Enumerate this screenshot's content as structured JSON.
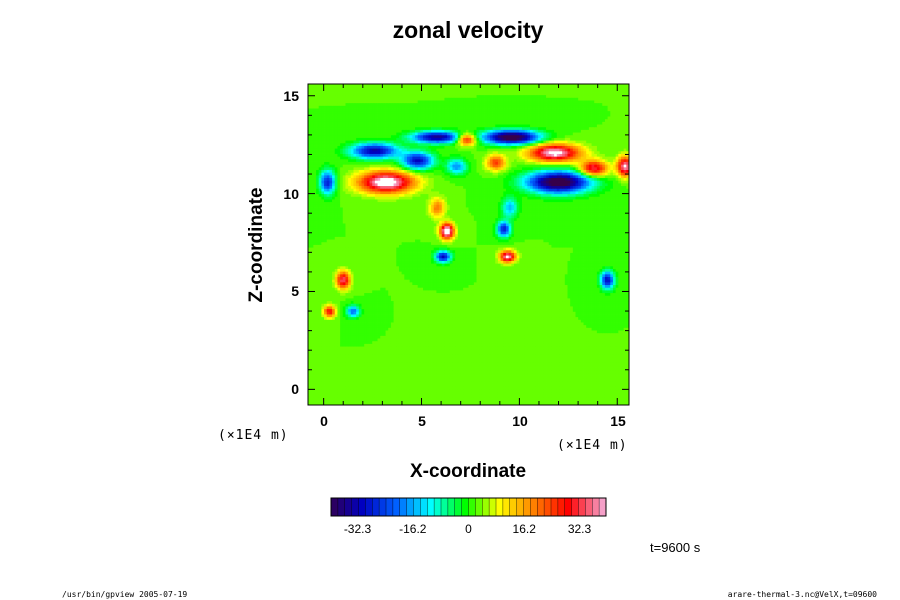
{
  "footer": {
    "left": "/usr/bin/gpview 2005-07-19",
    "right": "arare-thermal-3.nc@VelX,t=09600"
  },
  "chart_data": {
    "type": "heatmap",
    "title": "zonal velocity",
    "xlabel": "X-coordinate",
    "ylabel": "Z-coordinate",
    "x_unit": "(×1E4 m)",
    "y_unit": "(×1E4 m)",
    "xlim": [
      -0.8,
      15.6
    ],
    "ylim": [
      -0.8,
      15.6
    ],
    "x_ticks": [
      0,
      5,
      10,
      15
    ],
    "y_ticks": [
      0,
      5,
      10,
      15
    ],
    "x_tick_labels": [
      "0",
      "5",
      "10",
      "15"
    ],
    "y_tick_labels": [
      "0",
      "5",
      "10",
      "15"
    ],
    "time_label": "t=9600 s",
    "colorbar": {
      "vmin": -40,
      "vmax": 40,
      "ticks": [
        -32.3,
        -16.2,
        0,
        16.2,
        32.3
      ],
      "tick_labels": [
        "-32.3",
        "-16.2",
        "0",
        "16.2",
        "32.3"
      ],
      "levels": 40,
      "colormap": [
        "#36004a",
        "#0000c0",
        "#0060ff",
        "#00ffff",
        "#00ff00",
        "#ffff00",
        "#ff8000",
        "#ff0000",
        "#f5a0c8"
      ]
    },
    "background_value": 3,
    "features": [
      {
        "x": 3.2,
        "z": 10.6,
        "sx": 1.4,
        "sz": 0.55,
        "value": 34
      },
      {
        "x": 11.8,
        "z": 12.1,
        "sx": 1.3,
        "sz": 0.45,
        "value": 32
      },
      {
        "x": 13.8,
        "z": 11.3,
        "sx": 0.7,
        "sz": 0.4,
        "value": 26
      },
      {
        "x": 15.4,
        "z": 11.4,
        "sx": 0.4,
        "sz": 0.5,
        "value": 30
      },
      {
        "x": 7.3,
        "z": 12.8,
        "sx": 0.5,
        "sz": 0.3,
        "value": 26
      },
      {
        "x": 6.3,
        "z": 8.1,
        "sx": 0.35,
        "sz": 0.4,
        "value": 36
      },
      {
        "x": 9.4,
        "z": 6.8,
        "sx": 0.4,
        "sz": 0.3,
        "value": 30
      },
      {
        "x": 1.0,
        "z": 5.6,
        "sx": 0.35,
        "sz": 0.45,
        "value": 26
      },
      {
        "x": 0.3,
        "z": 4.0,
        "sx": 0.3,
        "sz": 0.3,
        "value": 22
      },
      {
        "x": 5.8,
        "z": 9.3,
        "sx": 0.4,
        "sz": 0.5,
        "value": 14
      },
      {
        "x": 2.6,
        "z": 12.2,
        "sx": 1.2,
        "sz": 0.4,
        "value": -28
      },
      {
        "x": 4.8,
        "z": 11.7,
        "sx": 0.8,
        "sz": 0.45,
        "value": -26
      },
      {
        "x": 0.2,
        "z": 10.6,
        "sx": 0.4,
        "sz": 0.6,
        "value": -24
      },
      {
        "x": 12.0,
        "z": 10.6,
        "sx": 1.6,
        "sz": 0.55,
        "value": -38
      },
      {
        "x": 9.6,
        "z": 12.9,
        "sx": 1.4,
        "sz": 0.35,
        "value": -38
      },
      {
        "x": 5.8,
        "z": 12.9,
        "sx": 1.3,
        "sz": 0.3,
        "value": -30
      },
      {
        "x": 9.2,
        "z": 8.2,
        "sx": 0.35,
        "sz": 0.4,
        "value": -24
      },
      {
        "x": 6.1,
        "z": 6.8,
        "sx": 0.4,
        "sz": 0.3,
        "value": -26
      },
      {
        "x": 14.5,
        "z": 5.6,
        "sx": 0.35,
        "sz": 0.45,
        "value": -26
      },
      {
        "x": 1.5,
        "z": 4.0,
        "sx": 0.35,
        "sz": 0.3,
        "value": -18
      },
      {
        "x": 9.5,
        "z": 9.3,
        "sx": 0.4,
        "sz": 0.5,
        "value": -14
      },
      {
        "x": 8.8,
        "z": 11.6,
        "sx": 0.5,
        "sz": 0.4,
        "value": 18
      },
      {
        "x": 6.8,
        "z": 11.4,
        "sx": 0.5,
        "sz": 0.4,
        "value": -16
      }
    ]
  }
}
